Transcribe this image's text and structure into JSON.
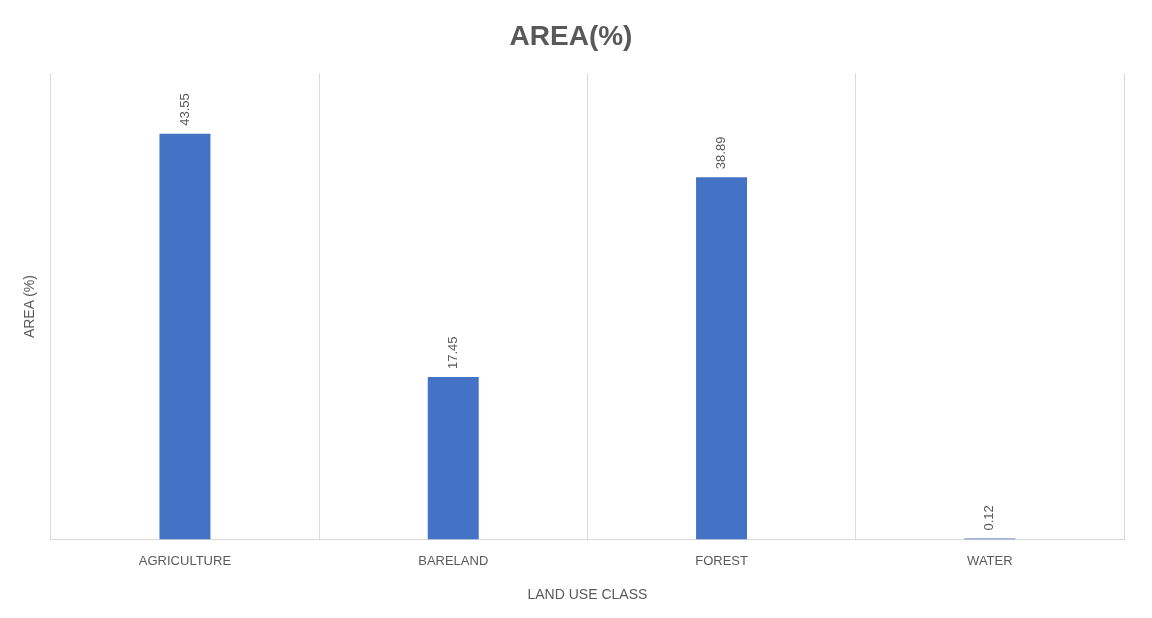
{
  "chart_data": {
    "type": "bar",
    "title": "AREA(%)",
    "xlabel": "LAND USE CLASS",
    "ylabel": "AREA (%)",
    "categories": [
      "AGRICULTURE",
      "BARELAND",
      "FOREST",
      "WATER"
    ],
    "values": [
      43.55,
      17.45,
      38.89,
      0.12
    ],
    "color": "#4472c4",
    "data_labels": true,
    "grid": "x",
    "legend": false
  }
}
